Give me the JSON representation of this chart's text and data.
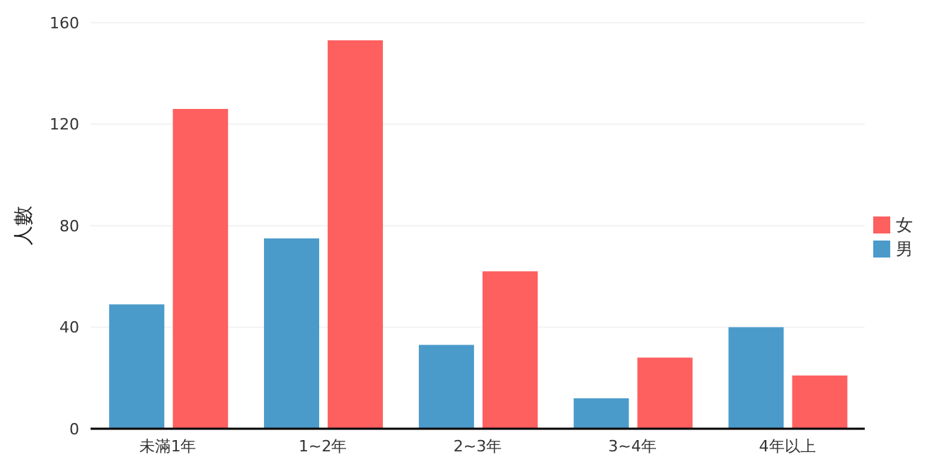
{
  "chart_data": {
    "type": "bar",
    "ylabel": "人數",
    "categories": [
      "未滿1年",
      "1~2年",
      "2~3年",
      "3~4年",
      "4年以上"
    ],
    "series": [
      {
        "name": "男",
        "color": "#4a9bca",
        "values": [
          49,
          75,
          33,
          12,
          40
        ]
      },
      {
        "name": "女",
        "color": "#fe5f5f",
        "values": [
          126,
          153,
          62,
          28,
          21
        ]
      }
    ],
    "ylim": [
      0,
      160
    ],
    "yticks": [
      0,
      40,
      80,
      120,
      160
    ],
    "grid": "y",
    "legend": "right"
  }
}
